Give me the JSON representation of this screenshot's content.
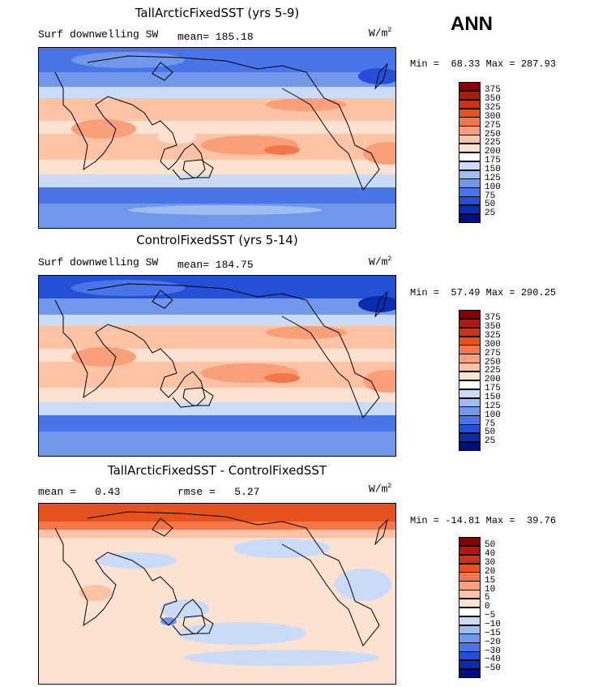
{
  "season": "ANN",
  "panels": [
    {
      "title": "TallArcticFixedSST (yrs 5-9)",
      "subtitle_left": "Surf downwelling SW",
      "mean_text": "mean= 185.18",
      "units": "W/m",
      "units_sup": "2",
      "minmax": "Min =  68.33 Max = 287.93",
      "kind": "abs"
    },
    {
      "title": "ControlFixedSST (yrs 5-14)",
      "subtitle_left": "Surf downwelling SW",
      "mean_text": "mean= 184.75",
      "units": "W/m",
      "units_sup": "2",
      "minmax": "Min =  57.49 Max = 290.25",
      "kind": "abs"
    },
    {
      "title": "TallArcticFixedSST - ControlFixedSST",
      "subtitle_left": "mean =   0.43",
      "mean_text": "rmse =   5.27",
      "units": "W/m",
      "units_sup": "2",
      "minmax": "Min = -14.81 Max =  39.76",
      "kind": "diff"
    }
  ],
  "chart_data": [
    {
      "type": "heatmap",
      "title": "TallArcticFixedSST (yrs 5-9)",
      "variable": "Surf downwelling SW",
      "units": "W/m2",
      "mean": 185.18,
      "min": 68.33,
      "max": 287.93,
      "colorbar_levels": [
        375,
        350,
        325,
        300,
        275,
        250,
        225,
        200,
        175,
        150,
        125,
        100,
        75,
        50,
        25
      ],
      "colorbar_colors": [
        "#8b0000",
        "#b2180c",
        "#cd3313",
        "#e6521e",
        "#f2784a",
        "#f9a07a",
        "#fdc3a4",
        "#fde2d2",
        "#ffffff",
        "#c9dbf7",
        "#9fbdf0",
        "#7097ea",
        "#4a75e8",
        "#2450d8",
        "#0a2cb0",
        "#000f82"
      ]
    },
    {
      "type": "heatmap",
      "title": "ControlFixedSST (yrs 5-14)",
      "variable": "Surf downwelling SW",
      "units": "W/m2",
      "mean": 184.75,
      "min": 57.49,
      "max": 290.25,
      "colorbar_levels": [
        375,
        350,
        325,
        300,
        275,
        250,
        225,
        200,
        175,
        150,
        125,
        100,
        75,
        50,
        25
      ],
      "colorbar_colors": [
        "#8b0000",
        "#b2180c",
        "#cd3313",
        "#e6521e",
        "#f2784a",
        "#f9a07a",
        "#fdc3a4",
        "#fde2d2",
        "#ffffff",
        "#c9dbf7",
        "#9fbdf0",
        "#7097ea",
        "#4a75e8",
        "#2450d8",
        "#0a2cb0",
        "#000f82"
      ]
    },
    {
      "type": "heatmap",
      "title": "TallArcticFixedSST - ControlFixedSST",
      "units": "W/m2",
      "mean": 0.43,
      "rmse": 5.27,
      "min": -14.81,
      "max": 39.76,
      "colorbar_levels": [
        "50",
        "40",
        "30",
        "20",
        "15",
        "10",
        "5",
        "0",
        "−5",
        "−10",
        "−15",
        "−20",
        "−30",
        "−40",
        "−50"
      ],
      "colorbar_colors": [
        "#8b0000",
        "#b2180c",
        "#cd3313",
        "#e6521e",
        "#f2784a",
        "#f9a07a",
        "#fdc3a4",
        "#fde2d2",
        "#ffffff",
        "#c9dbf7",
        "#9fbdf0",
        "#7097ea",
        "#4a75e8",
        "#2450d8",
        "#0a2cb0",
        "#000f82"
      ]
    }
  ]
}
